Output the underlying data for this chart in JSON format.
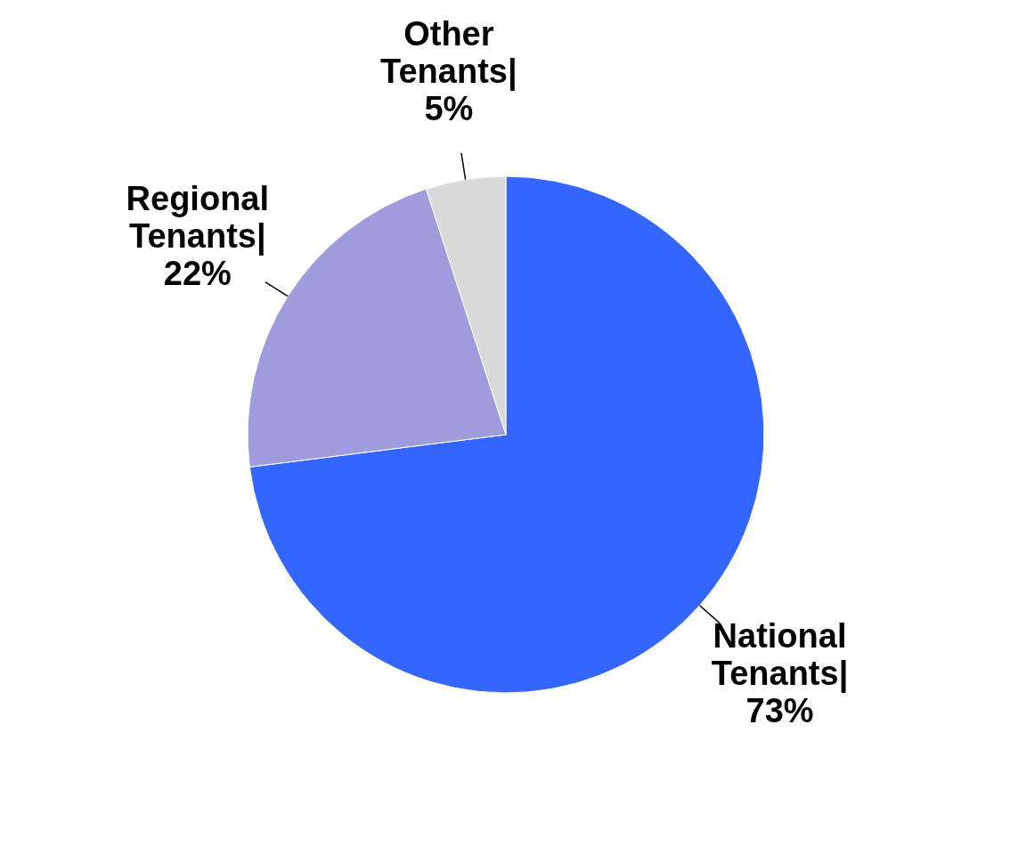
{
  "chart_data": {
    "type": "pie",
    "categories": [
      "National Tenants|",
      "Regional Tenants|",
      "Other Tenants|"
    ],
    "values": [
      73,
      22,
      5
    ],
    "value_labels": [
      "73%",
      "22%",
      "5%"
    ],
    "colors": [
      "#3366ff",
      "#9e9cdc",
      "#d9d9d9"
    ]
  }
}
